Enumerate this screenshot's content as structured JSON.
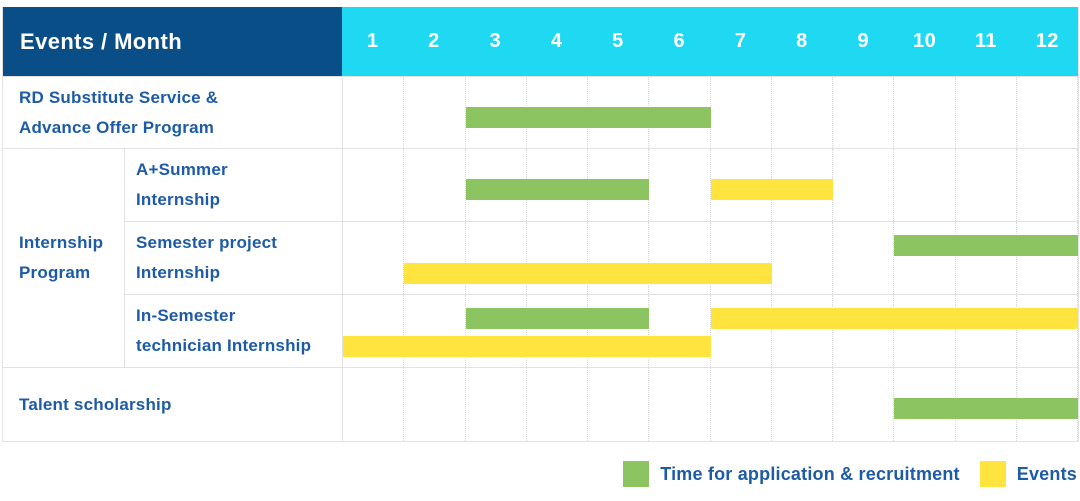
{
  "header": {
    "corner_label": "Events / Month"
  },
  "colors": {
    "application": "#8cc462",
    "events": "#ffe440",
    "header_navy": "#0a4e87",
    "header_cyan": "#1fd8f2",
    "label_text": "#1d5ba6"
  },
  "chart_data": {
    "type": "gantt",
    "x_axis": {
      "label": "Month",
      "ticks": [
        "1",
        "2",
        "3",
        "4",
        "5",
        "6",
        "7",
        "8",
        "9",
        "10",
        "11",
        "12"
      ],
      "range": [
        1,
        12
      ]
    },
    "legend_position": "bottom-right",
    "grid": true,
    "series": [
      {
        "key": "application",
        "name": "Time for application & recruitment",
        "color": "#8cc462"
      },
      {
        "key": "events",
        "name": "Events",
        "color": "#ffe440"
      }
    ],
    "group_label_lines": [
      "Internship",
      "Program"
    ],
    "rows": [
      {
        "label": "RD Substitute Service & Advance Offer Program",
        "label_lines": [
          "RD Substitute Service &",
          "Advance Offer Program"
        ],
        "group": null,
        "bars": [
          {
            "series": "application",
            "start_month": 3,
            "end_month": 6,
            "band": "mid"
          }
        ]
      },
      {
        "label": "A+Summer Internship",
        "label_lines": [
          "A+Summer",
          "Internship"
        ],
        "group": "Internship Program",
        "bars": [
          {
            "series": "application",
            "start_month": 3,
            "end_month": 5,
            "band": "mid"
          },
          {
            "series": "events",
            "start_month": 7,
            "end_month": 8,
            "band": "mid"
          }
        ]
      },
      {
        "label": "Semester project Internship",
        "label_lines": [
          "Semester project",
          "Internship"
        ],
        "group": "Internship Program",
        "bars": [
          {
            "series": "application",
            "start_month": 10,
            "end_month": 12,
            "band": "top"
          },
          {
            "series": "events",
            "start_month": 2,
            "end_month": 7,
            "band": "bottom"
          }
        ]
      },
      {
        "label": "In-Semester technician Internship",
        "label_lines": [
          "In-Semester",
          "technician Internship"
        ],
        "group": "Internship Program",
        "bars": [
          {
            "series": "application",
            "start_month": 3,
            "end_month": 5,
            "band": "top"
          },
          {
            "series": "events",
            "start_month": 7,
            "end_month": 12,
            "band": "top"
          },
          {
            "series": "events",
            "start_month": 1,
            "end_month": 6,
            "band": "bottom"
          }
        ]
      },
      {
        "label": "Talent scholarship",
        "label_lines": [
          "Talent scholarship"
        ],
        "group": null,
        "bars": [
          {
            "series": "application",
            "start_month": 10,
            "end_month": 12,
            "band": "mid"
          }
        ]
      }
    ]
  },
  "legend": {
    "items": [
      {
        "label": "Time for application & recruitment",
        "series": "application"
      },
      {
        "label": "Events",
        "series": "events"
      }
    ]
  }
}
